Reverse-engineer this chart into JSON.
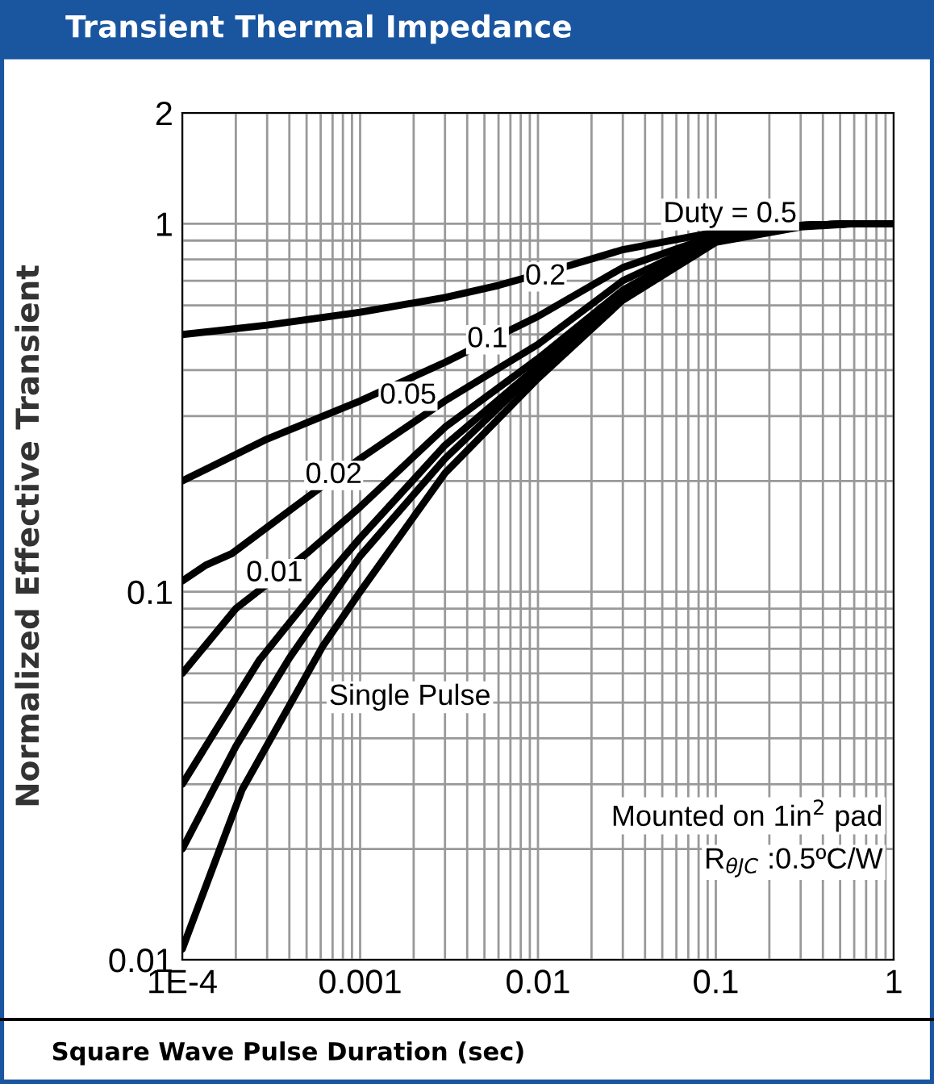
{
  "chart_data": {
    "type": "line",
    "title": "Transient Thermal Impedance",
    "xlabel": "Square Wave Pulse Duration (sec)",
    "ylabel": "Normalized Effective Transient",
    "log": "xy",
    "grid": true,
    "line_style": "solid",
    "xlim": [
      0.0001,
      1
    ],
    "ylim": [
      0.01,
      2
    ],
    "xticks": [
      {
        "value": 0.0001,
        "label": "1E-4"
      },
      0.001,
      0.01,
      0.1,
      1
    ],
    "yticks": [
      0.01,
      0.1,
      1,
      2
    ],
    "series": [
      {
        "color": "#000000",
        "x": [
          0.0001,
          0.0003,
          0.001,
          0.003,
          0.006,
          0.015,
          0.03,
          0.1,
          0.3,
          0.6,
          1
        ],
        "values": [
          0.5,
          0.53,
          0.575,
          0.63,
          0.68,
          0.77,
          0.85,
          0.95,
          0.99,
          1.0,
          1.0
        ]
      },
      {
        "color": "#000000",
        "x": [
          0.0001,
          0.0003,
          0.001,
          0.003,
          0.01,
          0.03,
          0.1,
          0.3,
          0.6,
          1
        ],
        "values": [
          0.2,
          0.26,
          0.33,
          0.42,
          0.56,
          0.76,
          0.93,
          0.99,
          1.0,
          1.0
        ]
      },
      {
        "color": "#000000",
        "x": [
          0.0001,
          0.000135,
          0.00019,
          0.0005,
          0.001,
          0.003,
          0.01,
          0.03,
          0.1,
          0.3,
          0.6,
          1
        ],
        "values": [
          0.107,
          0.118,
          0.127,
          0.18,
          0.23,
          0.33,
          0.47,
          0.7,
          0.92,
          0.99,
          1.0,
          1.0
        ]
      },
      {
        "color": "#000000",
        "x": [
          0.0001,
          0.0002,
          0.0005,
          0.001,
          0.003,
          0.01,
          0.03,
          0.1,
          0.3,
          0.6,
          1
        ],
        "values": [
          0.06,
          0.09,
          0.127,
          0.17,
          0.28,
          0.43,
          0.66,
          0.91,
          0.99,
          1.0,
          1.0
        ]
      },
      {
        "color": "#000000",
        "x": [
          0.0001,
          0.00027,
          0.00062,
          0.001,
          0.003,
          0.01,
          0.03,
          0.1,
          0.3,
          0.6,
          1
        ],
        "values": [
          0.03,
          0.065,
          0.107,
          0.14,
          0.25,
          0.41,
          0.64,
          0.9,
          0.99,
          1.0,
          1.0
        ]
      },
      {
        "color": "#000000",
        "x": [
          0.0001,
          0.0002,
          0.0004,
          0.001,
          0.003,
          0.01,
          0.03,
          0.1,
          0.3,
          0.6,
          1
        ],
        "values": [
          0.02,
          0.038,
          0.066,
          0.125,
          0.23,
          0.4,
          0.63,
          0.9,
          0.99,
          1.0,
          1.0
        ]
      },
      {
        "color": "#000000",
        "x": [
          0.0001,
          0.000217,
          0.000615,
          0.001,
          0.003,
          0.01,
          0.03,
          0.1,
          0.3,
          0.6,
          1
        ],
        "values": [
          0.0107,
          0.029,
          0.071,
          0.1,
          0.21,
          0.38,
          0.62,
          0.89,
          0.98,
          1.0,
          1.0
        ]
      }
    ],
    "annotations": [
      "Duty = 0.5",
      {
        "text": "0.2",
        "x": 0.011,
        "y": 0.717
      },
      {
        "text": "0.1",
        "x": 0.0052,
        "y": 0.484
      },
      {
        "text": "0.05",
        "x": 0.00186,
        "y": 0.34
      },
      {
        "text": "0.02",
        "x": 0.00071,
        "y": 0.207
      },
      {
        "text": "0.01",
        "x": 0.00033,
        "y": 0.112
      },
      "Single Pulse",
      "Mounted on 1in$^{2}$ pad",
      "R$_{θJC}$ :0.5ºC/W"
    ]
  }
}
